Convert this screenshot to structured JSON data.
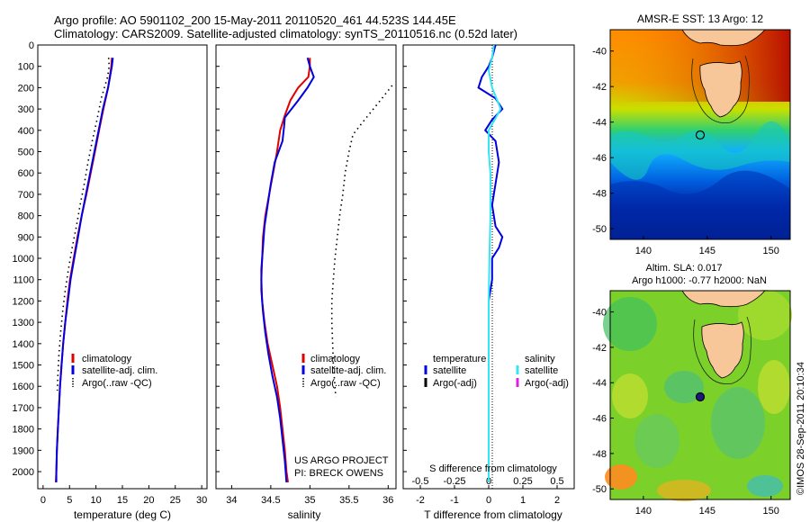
{
  "header": {
    "line1": "Argo profile: AO 5901102_200 15-May-2011 20110520_461 44.523S 144.45E",
    "line2": "Climatology: CARS2009. Satellite-adjusted climatology: synTS_20110516.nc (0.52d later)"
  },
  "colors": {
    "climatology": "#e00000",
    "satellite": "#0000e0",
    "argo": "#000000",
    "salinity_satellite": "#33e6f2",
    "salinity_argo": "#e020e0",
    "land": "#f7c79a"
  },
  "chart_data": [
    {
      "type": "line",
      "xlabel": "temperature (deg C)",
      "ylabel": "",
      "xlim": [
        -1,
        31
      ],
      "ylim": [
        2080,
        0
      ],
      "y_reversed": true,
      "xticks": [
        0,
        5,
        10,
        15,
        20,
        25,
        30
      ],
      "yticks": [
        0,
        100,
        200,
        300,
        400,
        500,
        600,
        700,
        800,
        900,
        1000,
        1100,
        1200,
        1300,
        1400,
        1500,
        1600,
        1700,
        1800,
        1900,
        2000
      ],
      "legend": [
        "climatology",
        "satellite-adj. clim.",
        "Argo(..raw -QC)"
      ],
      "legend_position": "center-left",
      "series": [
        {
          "name": "climatology",
          "style": "solid",
          "color": "#e00000",
          "points": [
            [
              13.0,
              60
            ],
            [
              12.9,
              100
            ],
            [
              12.3,
              200
            ],
            [
              11.4,
              300
            ],
            [
              10.6,
              400
            ],
            [
              9.8,
              500
            ],
            [
              9.0,
              600
            ],
            [
              8.2,
              700
            ],
            [
              7.3,
              800
            ],
            [
              6.5,
              900
            ],
            [
              5.8,
              1000
            ],
            [
              5.1,
              1100
            ],
            [
              4.6,
              1200
            ],
            [
              4.2,
              1300
            ],
            [
              3.8,
              1400
            ],
            [
              3.5,
              1500
            ],
            [
              3.2,
              1600
            ],
            [
              3.0,
              1700
            ],
            [
              2.8,
              1800
            ],
            [
              2.6,
              1900
            ],
            [
              2.5,
              2000
            ],
            [
              2.4,
              2050
            ]
          ]
        },
        {
          "name": "satellite-adj. clim.",
          "style": "solid",
          "color": "#0000e0",
          "points": [
            [
              13.2,
              60
            ],
            [
              13.0,
              100
            ],
            [
              12.3,
              200
            ],
            [
              11.3,
              300
            ],
            [
              10.5,
              400
            ],
            [
              9.7,
              500
            ],
            [
              8.9,
              600
            ],
            [
              8.1,
              700
            ],
            [
              7.3,
              800
            ],
            [
              6.6,
              900
            ],
            [
              5.9,
              1000
            ],
            [
              5.2,
              1100
            ],
            [
              4.7,
              1200
            ],
            [
              4.2,
              1300
            ],
            [
              3.8,
              1400
            ],
            [
              3.5,
              1500
            ],
            [
              3.2,
              1600
            ],
            [
              3.0,
              1700
            ],
            [
              2.8,
              1800
            ],
            [
              2.6,
              1900
            ],
            [
              2.5,
              2000
            ],
            [
              2.5,
              2050
            ]
          ]
        },
        {
          "name": "Argo(..raw -QC)",
          "style": "dotted",
          "color": "#000000",
          "points": [
            [
              12.4,
              60
            ],
            [
              12.5,
              100
            ],
            [
              12.2,
              150
            ],
            [
              11.0,
              250
            ],
            [
              10.2,
              350
            ],
            [
              9.3,
              450
            ],
            [
              8.5,
              550
            ],
            [
              7.8,
              650
            ],
            [
              7.0,
              750
            ],
            [
              6.3,
              850
            ],
            [
              5.5,
              950
            ],
            [
              4.8,
              1050
            ],
            [
              4.2,
              1150
            ],
            [
              3.7,
              1250
            ],
            [
              3.3,
              1350
            ],
            [
              3.0,
              1450
            ],
            [
              2.8,
              1550
            ],
            [
              2.7,
              1620
            ]
          ]
        }
      ]
    },
    {
      "type": "line",
      "xlabel": "salinity",
      "ylabel": "",
      "xlim": [
        33.8,
        36.1
      ],
      "ylim": [
        2080,
        0
      ],
      "y_reversed": true,
      "xticks": [
        34,
        34.5,
        35,
        35.5,
        36
      ],
      "legend": [
        "climatology",
        "satellite-adj. clim.",
        "Argo(..raw -QC)"
      ],
      "legend_position": "center",
      "annotations": [
        "US ARGO PROJECT",
        "PI: BRECK OWENS"
      ],
      "series": [
        {
          "name": "climatology",
          "style": "solid",
          "color": "#e00000",
          "points": [
            [
              35.0,
              60
            ],
            [
              35.0,
              100
            ],
            [
              34.98,
              150
            ],
            [
              34.85,
              200
            ],
            [
              34.75,
              260
            ],
            [
              34.68,
              330
            ],
            [
              34.62,
              400
            ],
            [
              34.58,
              500
            ],
            [
              34.53,
              600
            ],
            [
              34.48,
              700
            ],
            [
              34.43,
              800
            ],
            [
              34.4,
              900
            ],
            [
              34.39,
              1000
            ],
            [
              34.38,
              1100
            ],
            [
              34.39,
              1200
            ],
            [
              34.42,
              1300
            ],
            [
              34.46,
              1400
            ],
            [
              34.52,
              1500
            ],
            [
              34.58,
              1600
            ],
            [
              34.62,
              1700
            ],
            [
              34.65,
              1800
            ],
            [
              34.68,
              1900
            ],
            [
              34.7,
              2000
            ],
            [
              34.72,
              2050
            ]
          ]
        },
        {
          "name": "satellite-adj. clim.",
          "style": "solid",
          "color": "#0000e0",
          "points": [
            [
              34.97,
              60
            ],
            [
              35.0,
              100
            ],
            [
              35.05,
              150
            ],
            [
              34.97,
              200
            ],
            [
              34.85,
              260
            ],
            [
              34.68,
              340
            ],
            [
              34.67,
              380
            ],
            [
              34.65,
              450
            ],
            [
              34.55,
              550
            ],
            [
              34.5,
              650
            ],
            [
              34.46,
              750
            ],
            [
              34.42,
              850
            ],
            [
              34.4,
              950
            ],
            [
              34.38,
              1050
            ],
            [
              34.38,
              1150
            ],
            [
              34.4,
              1250
            ],
            [
              34.43,
              1350
            ],
            [
              34.47,
              1450
            ],
            [
              34.52,
              1550
            ],
            [
              34.58,
              1650
            ],
            [
              34.62,
              1750
            ],
            [
              34.65,
              1850
            ],
            [
              34.68,
              1950
            ],
            [
              34.7,
              2050
            ]
          ]
        },
        {
          "name": "Argo(..raw -QC)",
          "style": "dotted",
          "color": "#000000",
          "points": [
            [
              36.05,
              190
            ],
            [
              35.9,
              260
            ],
            [
              35.7,
              350
            ],
            [
              35.55,
              420
            ],
            [
              35.5,
              500
            ],
            [
              35.45,
              600
            ],
            [
              35.42,
              700
            ],
            [
              35.38,
              800
            ],
            [
              35.35,
              900
            ],
            [
              35.32,
              1000
            ],
            [
              35.3,
              1100
            ],
            [
              35.28,
              1200
            ],
            [
              35.28,
              1300
            ],
            [
              35.29,
              1400
            ],
            [
              35.3,
              1500
            ],
            [
              35.32,
              1600
            ],
            [
              35.33,
              1650
            ]
          ]
        }
      ]
    },
    {
      "type": "line",
      "xlabel": "T difference from climatology",
      "xlabel_top": "S difference from climatology",
      "xlim": [
        -2.5,
        2.5
      ],
      "ylim": [
        2080,
        0
      ],
      "y_reversed": true,
      "xticks": [
        -2,
        -1,
        0,
        1,
        2
      ],
      "xticks_s": [
        "-0.5",
        "-0.25",
        "0",
        "0.25",
        "0.5"
      ],
      "legend_temperature_heading": "temperature",
      "legend_salinity_heading": "salinity",
      "legend": [
        "satellite",
        "Argo(-adj)",
        "satellite",
        "Argo(-adj)"
      ],
      "legend_position": "center",
      "series": [
        {
          "name": "temperature satellite",
          "style": "solid",
          "color": "#0000e0",
          "points": [
            [
              0.2,
              0
            ],
            [
              0.1,
              60
            ],
            [
              0.0,
              100
            ],
            [
              -0.2,
              150
            ],
            [
              -0.3,
              200
            ],
            [
              0.2,
              250
            ],
            [
              0.4,
              300
            ],
            [
              0.1,
              350
            ],
            [
              -0.1,
              400
            ],
            [
              0.2,
              450
            ],
            [
              0.3,
              550
            ],
            [
              0.2,
              650
            ],
            [
              0.1,
              750
            ],
            [
              0.2,
              850
            ],
            [
              0.4,
              900
            ],
            [
              0.3,
              950
            ],
            [
              0.1,
              1000
            ],
            [
              0.1,
              1100
            ],
            [
              0.0,
              1200
            ],
            [
              0.0,
              1400
            ],
            [
              0.0,
              1600
            ],
            [
              0.0,
              1800
            ],
            [
              0.0,
              2050
            ]
          ]
        },
        {
          "name": "salinity satellite",
          "style": "solid",
          "color": "#33e6f2",
          "points": [
            [
              0.15,
              0
            ],
            [
              0.1,
              60
            ],
            [
              0.0,
              120
            ],
            [
              0.1,
              200
            ],
            [
              0.35,
              300
            ],
            [
              0.0,
              400
            ],
            [
              0.0,
              500
            ],
            [
              0.05,
              600
            ],
            [
              0.05,
              800
            ],
            [
              0.02,
              1000
            ],
            [
              0.0,
              1200
            ],
            [
              0.0,
              1500
            ],
            [
              0.0,
              1800
            ],
            [
              0.0,
              2050
            ]
          ]
        }
      ]
    }
  ],
  "maps": {
    "sst": {
      "title": "AMSR-E SST: 13 Argo: 12",
      "xticks": [
        "140",
        "145",
        "150"
      ],
      "yticks": [
        "-40",
        "-42",
        "-44",
        "-46",
        "-48",
        "-50"
      ]
    },
    "sla": {
      "title1": "Altim. SLA: 0.017",
      "title2": "Argo h1000: -0.77 h2000: NaN",
      "xticks": [
        "140",
        "145",
        "150"
      ],
      "yticks": [
        "-40",
        "-42",
        "-44",
        "-46",
        "-48",
        "-50"
      ]
    },
    "argo_position": {
      "lon": 144.45,
      "lat": -44.523
    }
  },
  "footer": {
    "imos": "©IMOS 28-Sep-2011 20:10:34"
  }
}
